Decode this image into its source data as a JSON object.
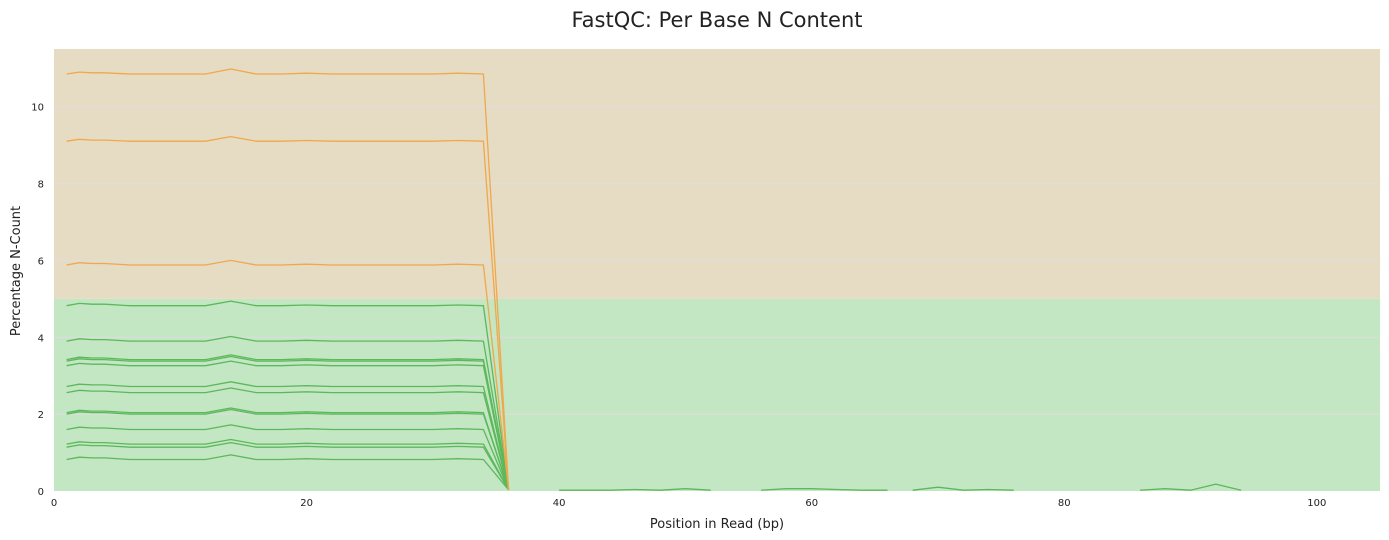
{
  "chart_data": {
    "type": "line",
    "title": "FastQC: Per Base N Content",
    "xlabel": "Position in Read (bp)",
    "ylabel": "Percentage N-Count",
    "xlim": [
      0,
      105
    ],
    "ylim": [
      0,
      11.5
    ],
    "x_ticks": [
      0,
      20,
      40,
      60,
      80,
      100
    ],
    "y_ticks": [
      0,
      2,
      4,
      6,
      8,
      10
    ],
    "grid": true,
    "bands": [
      {
        "y_from": 0,
        "y_to": 5,
        "color": "#c3e6c3",
        "status": "pass"
      },
      {
        "y_from": 5,
        "y_to": 11.5,
        "color": "#e6dcc3",
        "status": "warn"
      }
    ],
    "series_colors": {
      "warn": "#f0a84a",
      "pass": "#5cb85c"
    },
    "x": [
      1,
      2,
      3,
      4,
      6,
      8,
      10,
      12,
      14,
      16,
      18,
      20,
      22,
      24,
      26,
      28,
      30,
      32,
      34,
      36
    ],
    "series": [
      {
        "status": "warn",
        "values": [
          10.85,
          10.9,
          10.88,
          10.88,
          10.85,
          10.85,
          10.85,
          10.85,
          10.98,
          10.85,
          10.85,
          10.87,
          10.85,
          10.85,
          10.85,
          10.85,
          10.85,
          10.87,
          10.85,
          0.03
        ]
      },
      {
        "status": "warn",
        "values": [
          9.1,
          9.15,
          9.13,
          9.13,
          9.1,
          9.1,
          9.1,
          9.1,
          9.22,
          9.1,
          9.1,
          9.12,
          9.1,
          9.1,
          9.1,
          9.1,
          9.1,
          9.12,
          9.1,
          0.03
        ]
      },
      {
        "status": "warn",
        "values": [
          5.88,
          5.94,
          5.92,
          5.92,
          5.88,
          5.88,
          5.88,
          5.88,
          6.0,
          5.88,
          5.88,
          5.9,
          5.88,
          5.88,
          5.88,
          5.88,
          5.88,
          5.9,
          5.88,
          0.03
        ]
      },
      {
        "status": "pass",
        "values": [
          4.82,
          4.88,
          4.86,
          4.86,
          4.82,
          4.82,
          4.82,
          4.82,
          4.94,
          4.82,
          4.82,
          4.84,
          4.82,
          4.82,
          4.82,
          4.82,
          4.82,
          4.84,
          4.82,
          0.03
        ]
      },
      {
        "status": "pass",
        "values": [
          3.9,
          3.96,
          3.94,
          3.94,
          3.9,
          3.9,
          3.9,
          3.9,
          4.02,
          3.9,
          3.9,
          3.92,
          3.9,
          3.9,
          3.9,
          3.9,
          3.9,
          3.92,
          3.9,
          0.03
        ]
      },
      {
        "status": "pass",
        "values": [
          3.42,
          3.48,
          3.46,
          3.46,
          3.42,
          3.42,
          3.42,
          3.42,
          3.54,
          3.42,
          3.42,
          3.44,
          3.42,
          3.42,
          3.42,
          3.42,
          3.42,
          3.44,
          3.42,
          0.03
        ]
      },
      {
        "status": "pass",
        "values": [
          3.38,
          3.44,
          3.42,
          3.42,
          3.38,
          3.38,
          3.38,
          3.38,
          3.5,
          3.38,
          3.38,
          3.4,
          3.38,
          3.38,
          3.38,
          3.38,
          3.38,
          3.4,
          3.38,
          0.03
        ]
      },
      {
        "status": "pass",
        "values": [
          3.26,
          3.32,
          3.3,
          3.3,
          3.26,
          3.26,
          3.26,
          3.26,
          3.38,
          3.26,
          3.26,
          3.28,
          3.26,
          3.26,
          3.26,
          3.26,
          3.26,
          3.28,
          3.26,
          0.03
        ]
      },
      {
        "status": "pass",
        "values": [
          2.72,
          2.78,
          2.76,
          2.76,
          2.72,
          2.72,
          2.72,
          2.72,
          2.84,
          2.72,
          2.72,
          2.74,
          2.72,
          2.72,
          2.72,
          2.72,
          2.72,
          2.74,
          2.72,
          0.03
        ]
      },
      {
        "status": "pass",
        "values": [
          2.56,
          2.62,
          2.6,
          2.6,
          2.56,
          2.56,
          2.56,
          2.56,
          2.68,
          2.56,
          2.56,
          2.58,
          2.56,
          2.56,
          2.56,
          2.56,
          2.56,
          2.58,
          2.56,
          0.03
        ]
      },
      {
        "status": "pass",
        "values": [
          2.04,
          2.1,
          2.08,
          2.08,
          2.04,
          2.04,
          2.04,
          2.04,
          2.16,
          2.04,
          2.04,
          2.06,
          2.04,
          2.04,
          2.04,
          2.04,
          2.04,
          2.06,
          2.04,
          0.03
        ]
      },
      {
        "status": "pass",
        "values": [
          2.0,
          2.06,
          2.04,
          2.04,
          2.0,
          2.0,
          2.0,
          2.0,
          2.12,
          2.0,
          2.0,
          2.02,
          2.0,
          2.0,
          2.0,
          2.0,
          2.0,
          2.02,
          2.0,
          0.03
        ]
      },
      {
        "status": "pass",
        "values": [
          1.6,
          1.66,
          1.64,
          1.64,
          1.6,
          1.6,
          1.6,
          1.6,
          1.72,
          1.6,
          1.6,
          1.62,
          1.6,
          1.6,
          1.6,
          1.6,
          1.6,
          1.62,
          1.6,
          0.03
        ]
      },
      {
        "status": "pass",
        "values": [
          1.22,
          1.28,
          1.26,
          1.26,
          1.22,
          1.22,
          1.22,
          1.22,
          1.34,
          1.22,
          1.22,
          1.24,
          1.22,
          1.22,
          1.22,
          1.22,
          1.22,
          1.24,
          1.22,
          0.03
        ]
      },
      {
        "status": "pass",
        "values": [
          1.14,
          1.2,
          1.18,
          1.18,
          1.14,
          1.14,
          1.14,
          1.14,
          1.26,
          1.14,
          1.14,
          1.16,
          1.14,
          1.14,
          1.14,
          1.14,
          1.14,
          1.16,
          1.14,
          0.03
        ]
      },
      {
        "status": "pass",
        "values": [
          0.82,
          0.88,
          0.86,
          0.86,
          0.82,
          0.82,
          0.82,
          0.82,
          0.94,
          0.82,
          0.82,
          0.84,
          0.82,
          0.82,
          0.82,
          0.82,
          0.82,
          0.84,
          0.82,
          0.03
        ]
      }
    ],
    "tail_segments": [
      {
        "status": "pass",
        "x": [
          40,
          42,
          44,
          46,
          48,
          50,
          52
        ],
        "values": [
          0.02,
          0.02,
          0.02,
          0.04,
          0.02,
          0.06,
          0.02
        ]
      },
      {
        "status": "pass",
        "x": [
          56,
          58,
          60,
          62,
          64,
          66
        ],
        "values": [
          0.02,
          0.06,
          0.06,
          0.04,
          0.02,
          0.02
        ]
      },
      {
        "status": "pass",
        "x": [
          68,
          70,
          72,
          74,
          76
        ],
        "values": [
          0.02,
          0.1,
          0.02,
          0.04,
          0.02
        ]
      },
      {
        "status": "pass",
        "x": [
          86,
          88,
          90,
          92,
          94
        ],
        "values": [
          0.02,
          0.06,
          0.02,
          0.18,
          0.02
        ]
      }
    ]
  }
}
